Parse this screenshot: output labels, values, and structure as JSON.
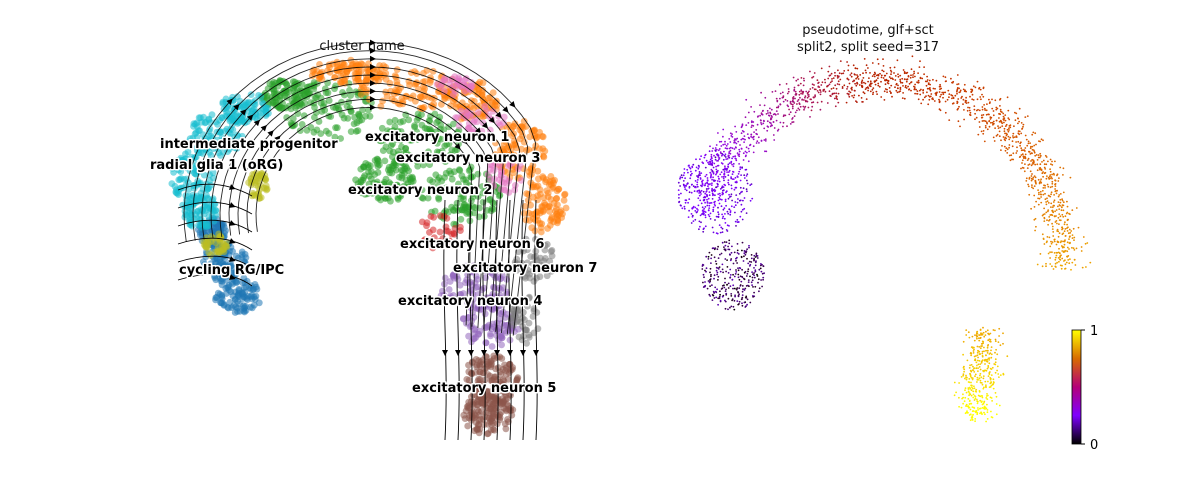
{
  "panels": {
    "left_title": "cluster name",
    "right_title_line1": "pseudotime, glf+sct",
    "right_title_line2": "split2, split seed=317"
  },
  "colors": {
    "radial glia 1 (oRG)": "#17becf",
    "intermediate progenitor": "#bcbd22",
    "cycling RG/IPC": "#1f77b4",
    "excitatory neuron 1": "#ff7f0e",
    "excitatory neuron 2": "#2ca02c",
    "excitatory neuron 3": "#e377c2",
    "excitatory neuron 4": "#9467bd",
    "excitatory neuron 5": "#8c564b",
    "excitatory neuron 6": "#d62728",
    "excitatory neuron 7": "#7f7f7f",
    "streamlines": "#000000"
  },
  "chart_data": [
    {
      "type": "scatter",
      "title": "cluster name",
      "xlabel": "",
      "ylabel": "",
      "axes_visible": false,
      "legend": "on data",
      "overlay": "velocity streamlines",
      "categories": [
        "intermediate progenitor",
        "radial glia 1 (oRG)",
        "cycling RG/IPC",
        "excitatory neuron 1",
        "excitatory neuron 2",
        "excitatory neuron 3",
        "excitatory neuron 4",
        "excitatory neuron 5",
        "excitatory neuron 6",
        "excitatory neuron 7"
      ]
    },
    {
      "type": "scatter",
      "title": "pseudotime, glf+sct split2, split seed=317",
      "xlabel": "",
      "ylabel": "",
      "axes_visible": false,
      "colormap": "gnuplot",
      "colorbar": {
        "min": 0,
        "max": 1,
        "ticks": [
          "0",
          "1"
        ]
      },
      "value_range": [
        0,
        1
      ]
    }
  ]
}
